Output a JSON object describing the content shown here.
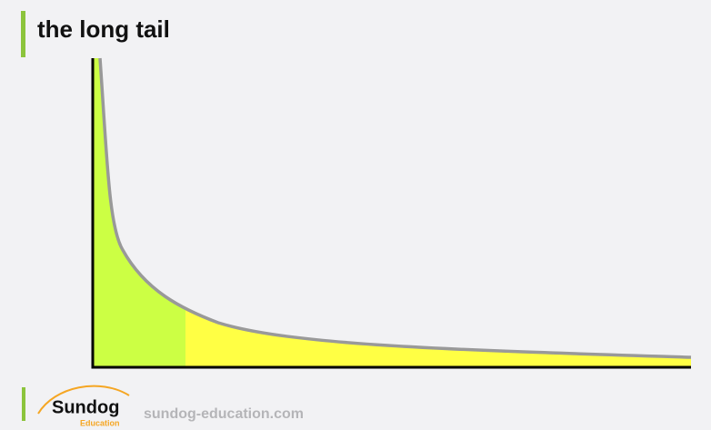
{
  "header": {
    "title": "the long tail"
  },
  "footer": {
    "logo_name": "Sundog",
    "logo_sub": "Education",
    "url": "sundog-education.com"
  }
}
